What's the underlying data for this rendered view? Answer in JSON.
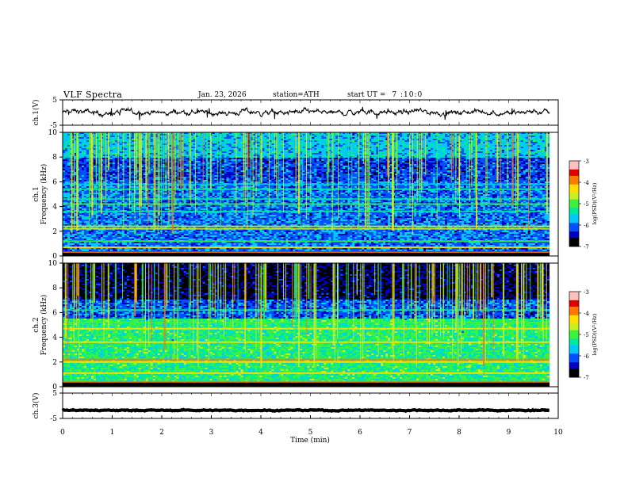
{
  "header": {
    "title": "VLF Spectra",
    "date": "Jan. 23, 2026",
    "station": "station=ATH",
    "start_ut_label": "start UT =",
    "start_ut_value": "7 :10:0"
  },
  "colormap": [
    "#000000",
    "#0000c0",
    "#0050ff",
    "#00c8ff",
    "#00e8a0",
    "#3cf23c",
    "#c8f020",
    "#ffe000",
    "#ff7800",
    "#e00000",
    "#ffc0c0",
    "#ffffff"
  ],
  "chart_data": [
    {
      "id": "ch1",
      "type": "line",
      "ylabel": "ch.1(V)",
      "yticks": [
        5,
        -5
      ],
      "ylim": [
        -5,
        5
      ],
      "xlim": [
        0,
        10
      ],
      "baseline": 0,
      "noise": 0.55
    },
    {
      "id": "ch1-spectrogram",
      "type": "heatmap",
      "ylabel": "ch.1\nFrequency (kHz)",
      "yticks": [
        0,
        2,
        4,
        6,
        8,
        10
      ],
      "ylim": [
        0,
        10
      ],
      "xlim": [
        0,
        9.82
      ],
      "colorbar": {
        "label": "log(PSD)(V²/Hz)",
        "ticks": [
          -3,
          -4,
          -5,
          -6,
          -7
        ],
        "range": [
          -7,
          -3
        ]
      },
      "lines_khz": [
        {
          "f": 0.3,
          "level": -3.8
        },
        {
          "f": 0.7,
          "level": -4.3
        },
        {
          "f": 1.2,
          "level": -4.9
        },
        {
          "f": 2.2,
          "level": -4.5
        },
        {
          "f": 2.4,
          "level": -4.7
        },
        {
          "f": 3.6,
          "level": -5.3
        },
        {
          "f": 4.2,
          "level": -5.1
        },
        {
          "f": 4.6,
          "level": -5.3
        },
        {
          "f": 5.4,
          "level": -5.5
        },
        {
          "f": 5.8,
          "level": -5.6
        }
      ]
    },
    {
      "id": "ch2-spectrogram",
      "type": "heatmap",
      "ylabel": "ch.2\nFrequency (kHz)",
      "yticks": [
        0,
        2,
        4,
        6,
        8,
        10
      ],
      "ylim": [
        0,
        10
      ],
      "xlim": [
        0,
        9.82
      ],
      "colorbar": {
        "label": "log(PSD)(V²/Hz)",
        "ticks": [
          -3,
          -4,
          -5,
          -6,
          -7
        ],
        "range": [
          -7,
          -3
        ]
      },
      "lines_khz": [
        {
          "f": 0.4,
          "level": -3.9
        },
        {
          "f": 1.1,
          "level": -4.4
        },
        {
          "f": 2.0,
          "level": -4.2
        },
        {
          "f": 2.2,
          "level": -3.9
        },
        {
          "f": 3.6,
          "level": -4.2
        },
        {
          "f": 4.7,
          "level": -4.3
        },
        {
          "f": 5.2,
          "level": -4.9
        },
        {
          "f": 6.2,
          "level": -5.4
        }
      ]
    },
    {
      "id": "ch3",
      "type": "line",
      "ylabel": "ch.3(V)",
      "yticks": [
        5,
        -5
      ],
      "ylim": [
        -5,
        5
      ],
      "xlim": [
        0,
        10
      ],
      "baseline": -1.8,
      "noise": 0.1
    }
  ],
  "xaxis": {
    "label": "Time (min)",
    "ticks": [
      0,
      1,
      2,
      3,
      4,
      5,
      6,
      7,
      8,
      9,
      10
    ]
  }
}
